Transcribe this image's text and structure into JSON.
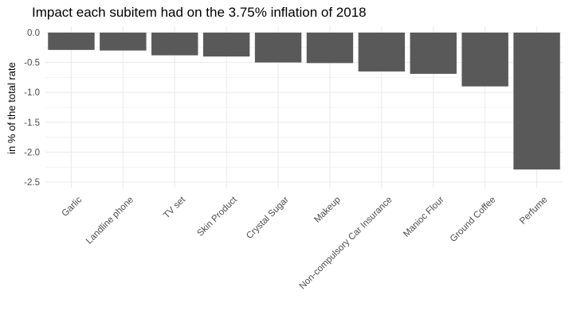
{
  "chart_data": {
    "type": "bar",
    "title": "Impact each subitem had on the 3.75% inflation of 2018",
    "xlabel": "",
    "ylabel": "in % of the total rate",
    "categories": [
      "Garlic",
      "Landline phone",
      "TV set",
      "Skin Product",
      "Crystal Sugar",
      "Makeup",
      "Non-compulsory Car Insurance",
      "Manioc Flour",
      "Ground Coffee",
      "Perfume"
    ],
    "values": [
      -0.29,
      -0.3,
      -0.38,
      -0.4,
      -0.5,
      -0.51,
      -0.65,
      -0.69,
      -0.9,
      -2.29
    ],
    "ylim": [
      -2.6,
      0.05
    ],
    "yticks": [
      0.0,
      -0.5,
      -1.0,
      -1.5,
      -2.0,
      -2.5
    ],
    "ytick_labels": [
      "0.0",
      "-0.5",
      "-1.0",
      "-1.5",
      "-2.0",
      "-2.5"
    ],
    "grid": true,
    "bar_color": "#595959",
    "grid_color": "#ebebeb"
  }
}
